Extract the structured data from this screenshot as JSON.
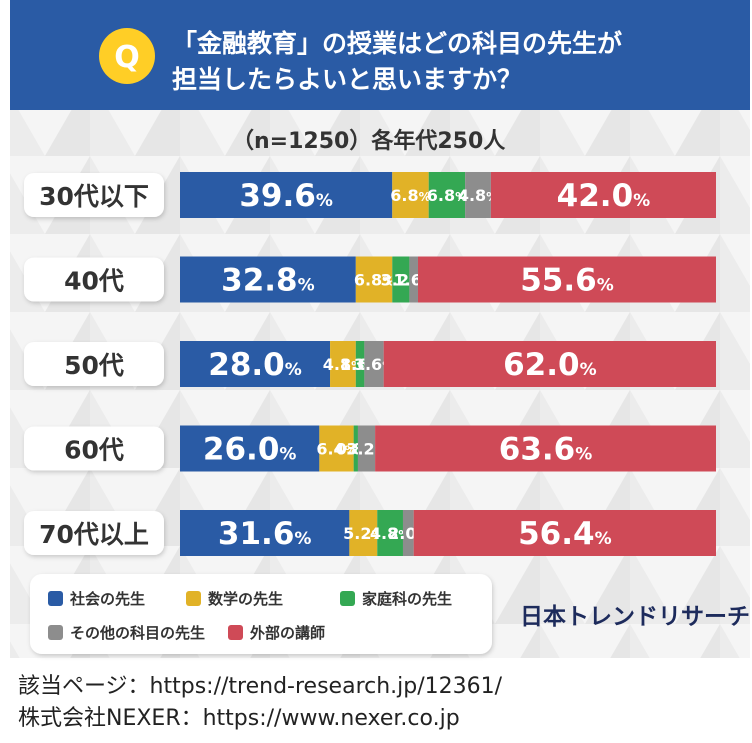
{
  "header": {
    "badge": "Q",
    "question_line1": "「金融教育」の授業はどの科目の先生が",
    "question_line2": "担当したらよいと思いますか？"
  },
  "sample_note": "（n=1250）各年代250人",
  "brand": "日本トレンドリサーチ",
  "source": {
    "page_line": "該当ページ：https://trend-research.jp/12361/",
    "company_line": "株式会社NEXER：https://www.nexer.co.jp"
  },
  "colors": {
    "header_bg": "#2a5ba5",
    "badge": "#ffce26",
    "social": "#2a5ba5",
    "math": "#e1b227",
    "home": "#34a853",
    "other": "#8d8d8d",
    "external": "#cf4a57"
  },
  "chart_data": {
    "type": "bar",
    "orientation": "horizontal",
    "stacked": true,
    "value_suffix": "%",
    "categories": [
      "30代以下",
      "40代",
      "50代",
      "60代",
      "70代以上"
    ],
    "series": [
      {
        "name": "社会の先生",
        "values": [
          39.6,
          32.8,
          28.0,
          26.0,
          31.6
        ],
        "color": "#2a5ba5"
      },
      {
        "name": "数学の先生",
        "values": [
          6.8,
          6.8,
          4.8,
          6.4,
          5.2
        ],
        "color": "#e1b227"
      },
      {
        "name": "家庭科の先生",
        "values": [
          6.8,
          3.2,
          1.6,
          0.8,
          4.8
        ],
        "color": "#34a853"
      },
      {
        "name": "その他の科目の先生",
        "values": [
          4.8,
          1.6,
          3.6,
          3.2,
          2.0
        ],
        "color": "#8d8d8d"
      },
      {
        "name": "外部の講師",
        "values": [
          42.0,
          55.6,
          62.0,
          63.6,
          56.4
        ],
        "color": "#cf4a57"
      }
    ],
    "xlim": [
      0,
      100
    ],
    "legend_position": "bottom-left"
  }
}
